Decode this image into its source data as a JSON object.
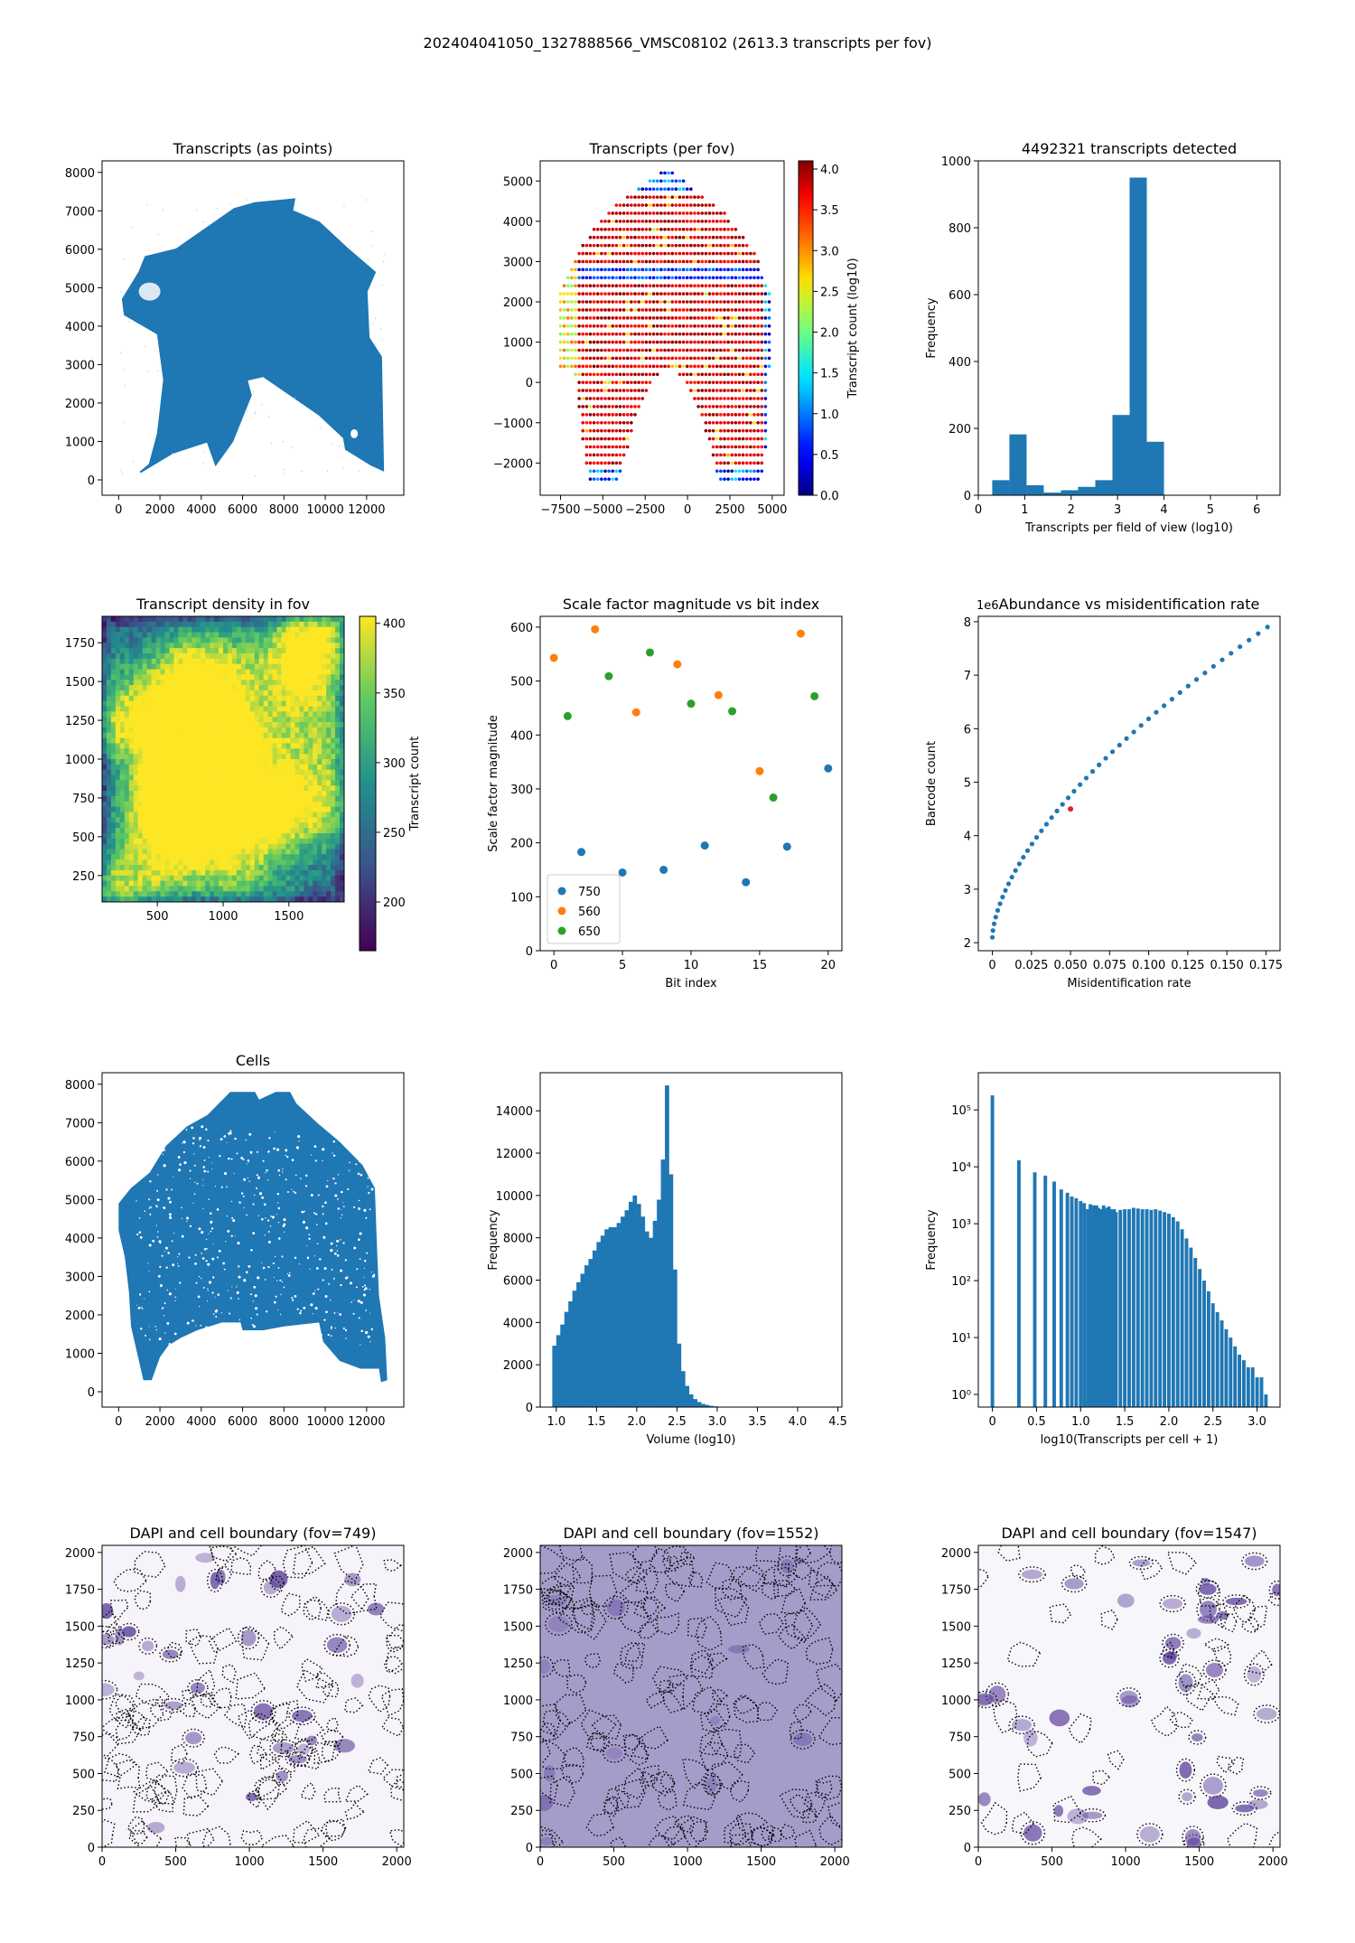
{
  "figure": {
    "suptitle": "202404041050_1327888566_VMSC08102 (2613.3 transcripts per fov)"
  },
  "colors": {
    "blue": "#1f77b4",
    "orange": "#ff7f0e",
    "green": "#2ca02c",
    "red": "#d62728",
    "dapi": "#5a3f9a"
  },
  "chart_data": [
    {
      "id": "transcripts-points",
      "type": "scatter",
      "title": "Transcripts (as points)",
      "xlabel": "",
      "ylabel": "",
      "xlim": [
        -800,
        13800
      ],
      "ylim": [
        -400,
        8300
      ],
      "xticks": [
        0,
        2000,
        4000,
        6000,
        8000,
        10000,
        12000
      ],
      "yticks": [
        0,
        1000,
        2000,
        3000,
        4000,
        5000,
        6000,
        7000,
        8000
      ],
      "outline": [
        [
          1050,
          200
        ],
        [
          1500,
          400
        ],
        [
          1900,
          1200
        ],
        [
          2200,
          2600
        ],
        [
          1900,
          3800
        ],
        [
          300,
          4300
        ],
        [
          200,
          4700
        ],
        [
          1000,
          5400
        ],
        [
          1300,
          5800
        ],
        [
          2800,
          6000
        ],
        [
          4400,
          6600
        ],
        [
          5600,
          7050
        ],
        [
          6600,
          7200
        ],
        [
          8500,
          7300
        ],
        [
          8400,
          7000
        ],
        [
          9700,
          6700
        ],
        [
          11100,
          6000
        ],
        [
          12400,
          5400
        ],
        [
          12000,
          4900
        ],
        [
          12100,
          3700
        ],
        [
          12700,
          3200
        ],
        [
          12800,
          250
        ],
        [
          12200,
          400
        ],
        [
          11000,
          800
        ],
        [
          10900,
          1100
        ],
        [
          9700,
          1700
        ],
        [
          7000,
          2700
        ],
        [
          6200,
          2600
        ],
        [
          6400,
          2200
        ],
        [
          5500,
          1000
        ],
        [
          4700,
          400
        ],
        [
          4300,
          1000
        ],
        [
          2600,
          700
        ]
      ],
      "series": [
        {
          "values_described_by": "outline"
        }
      ]
    },
    {
      "id": "transcripts-per-fov",
      "type": "scatter",
      "title": "Transcripts (per fov)",
      "xlabel": "",
      "ylabel": "",
      "xlim": [
        -8700,
        5700
      ],
      "ylim": [
        -2800,
        5500
      ],
      "xticks": [
        -7500,
        -5000,
        -2500,
        0,
        2500,
        5000
      ],
      "yticks": [
        -2000,
        -1000,
        0,
        1000,
        2000,
        3000,
        4000,
        5000
      ],
      "colorbar": {
        "label": "Transcript count (log10)",
        "min": 0,
        "max": 4.1,
        "ticks": [
          0.0,
          0.5,
          1.0,
          1.5,
          2.0,
          2.5,
          3.0,
          3.5,
          4.0
        ]
      },
      "grid_spacing": 200
    },
    {
      "id": "transcripts-hist",
      "type": "bar",
      "title": "4492321 transcripts detected",
      "xlabel": "Transcripts per field of view (log10)",
      "ylabel": "Frequency",
      "xlim": [
        0,
        6.5
      ],
      "ylim": [
        0,
        1000
      ],
      "xticks": [
        0,
        1,
        2,
        3,
        4,
        5,
        6
      ],
      "yticks": [
        0,
        200,
        400,
        600,
        800,
        1000
      ],
      "bin_edges": [
        0.3,
        0.67,
        1.04,
        1.41,
        1.78,
        2.15,
        2.52,
        2.89,
        3.26,
        3.63,
        4.0
      ],
      "counts": [
        45,
        182,
        30,
        8,
        15,
        25,
        45,
        240,
        950,
        160
      ]
    },
    {
      "id": "density-fov",
      "type": "heatmap",
      "title": "Transcript density in fov",
      "xlabel": "",
      "ylabel": "",
      "xlim": [
        80,
        1920
      ],
      "ylim": [
        80,
        1920
      ],
      "xticks": [
        500,
        1000,
        1500
      ],
      "yticks": [
        250,
        500,
        750,
        1000,
        1250,
        1500,
        1750
      ],
      "colorbar": {
        "label": "Transcript count",
        "min": 165,
        "max": 405,
        "ticks": [
          200,
          250,
          300,
          350,
          400
        ]
      }
    },
    {
      "id": "scale-factor",
      "type": "scatter",
      "title": "Scale factor magnitude vs bit index",
      "xlabel": "Bit index",
      "ylabel": "Scale factor magnitude",
      "xlim": [
        -1,
        21
      ],
      "ylim": [
        0,
        620
      ],
      "xticks": [
        0,
        5,
        10,
        15,
        20
      ],
      "yticks": [
        0,
        100,
        200,
        300,
        400,
        500,
        600
      ],
      "legend": "lower-left",
      "series": [
        {
          "name": "750",
          "x": [
            2,
            5,
            8,
            11,
            14,
            17,
            20
          ],
          "y": [
            183,
            145,
            150,
            195,
            127,
            193,
            338
          ]
        },
        {
          "name": "560",
          "x": [
            0,
            3,
            6,
            9,
            12,
            15,
            18
          ],
          "y": [
            543,
            596,
            442,
            531,
            474,
            333,
            588
          ]
        },
        {
          "name": "650",
          "x": [
            1,
            4,
            7,
            10,
            13,
            16,
            19
          ],
          "y": [
            435,
            509,
            553,
            458,
            444,
            284,
            472
          ]
        }
      ]
    },
    {
      "id": "abundance-misid",
      "type": "scatter",
      "title": "Abundance vs misidentification rate",
      "xlabel": "Misidentification rate",
      "ylabel": "Barcode count",
      "yoffset_label": "1e6",
      "xlim": [
        -0.009,
        0.184
      ],
      "ylim": [
        1.85,
        8.1
      ],
      "xticks": [
        0.0,
        0.025,
        0.05,
        0.075,
        0.1,
        0.125,
        0.15,
        0.175
      ],
      "yticks": [
        2,
        3,
        4,
        5,
        6,
        7,
        8
      ],
      "curve_points": 48,
      "highlight": {
        "x": 0.05,
        "y": 4.5
      }
    },
    {
      "id": "cells",
      "type": "scatter",
      "title": "Cells",
      "xlabel": "",
      "ylabel": "",
      "xlim": [
        -800,
        13800
      ],
      "ylim": [
        -400,
        8300
      ],
      "xticks": [
        0,
        2000,
        4000,
        6000,
        8000,
        10000,
        12000
      ],
      "yticks": [
        0,
        1000,
        2000,
        3000,
        4000,
        5000,
        6000,
        7000,
        8000
      ],
      "outline": [
        [
          1200,
          300
        ],
        [
          1600,
          300
        ],
        [
          2000,
          900
        ],
        [
          2400,
          1200
        ],
        [
          3000,
          1400
        ],
        [
          3800,
          1600
        ],
        [
          5000,
          1800
        ],
        [
          5900,
          1800
        ],
        [
          6000,
          1600
        ],
        [
          7000,
          1600
        ],
        [
          8000,
          1700
        ],
        [
          9700,
          1800
        ],
        [
          9900,
          1300
        ],
        [
          10700,
          800
        ],
        [
          11700,
          600
        ],
        [
          12600,
          600
        ],
        [
          12700,
          250
        ],
        [
          13000,
          300
        ],
        [
          12900,
          1400
        ],
        [
          12600,
          2500
        ],
        [
          12500,
          3800
        ],
        [
          12400,
          5300
        ],
        [
          11800,
          5900
        ],
        [
          10700,
          6500
        ],
        [
          9600,
          7000
        ],
        [
          8600,
          7500
        ],
        [
          8300,
          7800
        ],
        [
          7600,
          7800
        ],
        [
          6800,
          7600
        ],
        [
          6600,
          7800
        ],
        [
          5400,
          7800
        ],
        [
          4300,
          7200
        ],
        [
          3300,
          6900
        ],
        [
          2300,
          6400
        ],
        [
          1500,
          5700
        ],
        [
          600,
          5300
        ],
        [
          0,
          4900
        ],
        [
          0,
          4200
        ],
        [
          300,
          3500
        ],
        [
          500,
          2600
        ],
        [
          600,
          1700
        ],
        [
          900,
          1000
        ]
      ],
      "series": [
        {
          "values_described_by": "outline"
        }
      ]
    },
    {
      "id": "volume-hist",
      "type": "bar",
      "title": "",
      "xlabel": "Volume (log10)",
      "ylabel": "Frequency",
      "xlim": [
        0.8,
        4.55
      ],
      "ylim": [
        0,
        15800
      ],
      "xticks": [
        1.0,
        1.5,
        2.0,
        2.5,
        3.0,
        3.5,
        4.0,
        4.5
      ],
      "yticks": [
        0,
        2000,
        4000,
        6000,
        8000,
        10000,
        12000,
        14000
      ],
      "bin_start": 0.95,
      "bin_width": 0.05,
      "counts": [
        2900,
        3400,
        3900,
        4500,
        5000,
        5500,
        5900,
        6300,
        6700,
        7000,
        7400,
        7800,
        8100,
        8400,
        8500,
        8500,
        8700,
        9000,
        9300,
        9700,
        10000,
        9600,
        9000,
        8300,
        8000,
        8800,
        9800,
        11700,
        15200,
        11000,
        6500,
        3000,
        1700,
        1000,
        600,
        380,
        240,
        150,
        100,
        60,
        35,
        20,
        12,
        8,
        5,
        3,
        2,
        1
      ]
    },
    {
      "id": "transcripts-per-cell",
      "type": "bar",
      "title": "",
      "xlabel": "log10(Transcripts per cell + 1)",
      "ylabel": "Frequency",
      "yscale": "log",
      "xlim": [
        -0.16,
        3.26
      ],
      "ylim": [
        0.6,
        450000
      ],
      "xticks": [
        0.0,
        0.5,
        1.0,
        1.5,
        2.0,
        2.5,
        3.0
      ],
      "yticks": [
        1,
        10,
        100,
        1000,
        10000,
        100000
      ],
      "ytick_labels": [
        "10⁰",
        "10¹",
        "10²",
        "10³",
        "10⁴",
        "10⁵"
      ],
      "bars": [
        [
          0.0,
          180000
        ],
        [
          0.3,
          13000
        ],
        [
          0.48,
          8000
        ],
        [
          0.6,
          7000
        ],
        [
          0.7,
          5500
        ],
        [
          0.78,
          4000
        ],
        [
          0.85,
          3500
        ],
        [
          0.9,
          3000
        ],
        [
          0.95,
          2800
        ],
        [
          1.0,
          2500
        ],
        [
          1.04,
          2300
        ],
        [
          1.08,
          1800
        ],
        [
          1.11,
          2200
        ],
        [
          1.15,
          2100
        ],
        [
          1.18,
          2100
        ],
        [
          1.2,
          1900
        ],
        [
          1.23,
          1800
        ],
        [
          1.26,
          2100
        ],
        [
          1.28,
          1700
        ],
        [
          1.3,
          1900
        ],
        [
          1.32,
          2000
        ],
        [
          1.34,
          1800
        ],
        [
          1.36,
          1700
        ],
        [
          1.38,
          1800
        ],
        [
          1.4,
          1600
        ],
        [
          1.45,
          1750
        ],
        [
          1.5,
          1800
        ],
        [
          1.55,
          1800
        ],
        [
          1.6,
          1900
        ],
        [
          1.65,
          1850
        ],
        [
          1.7,
          1800
        ],
        [
          1.75,
          1800
        ],
        [
          1.8,
          1750
        ],
        [
          1.85,
          1800
        ],
        [
          1.9,
          1700
        ],
        [
          1.95,
          1600
        ],
        [
          2.0,
          1500
        ],
        [
          2.05,
          1300
        ],
        [
          2.1,
          1100
        ],
        [
          2.15,
          800
        ],
        [
          2.2,
          550
        ],
        [
          2.25,
          380
        ],
        [
          2.3,
          250
        ],
        [
          2.35,
          160
        ],
        [
          2.4,
          100
        ],
        [
          2.45,
          65
        ],
        [
          2.5,
          40
        ],
        [
          2.55,
          28
        ],
        [
          2.6,
          20
        ],
        [
          2.65,
          14
        ],
        [
          2.7,
          10
        ],
        [
          2.75,
          7
        ],
        [
          2.8,
          5
        ],
        [
          2.85,
          4
        ],
        [
          2.9,
          3
        ],
        [
          2.95,
          3
        ],
        [
          3.0,
          2
        ],
        [
          3.05,
          2
        ],
        [
          3.1,
          1
        ]
      ]
    },
    {
      "id": "dapi-749",
      "type": "heatmap",
      "title": "DAPI and cell boundary (fov=749)",
      "xlabel": "",
      "ylabel": "",
      "xlim": [
        0,
        2048
      ],
      "ylim": [
        0,
        2048
      ],
      "xticks": [
        0,
        500,
        1000,
        1500,
        2000
      ],
      "yticks": [
        0,
        250,
        500,
        750,
        1000,
        1250,
        1500,
        1750,
        2000
      ],
      "background": "#f6f4fa",
      "nuclei": 34,
      "boundaries": 120,
      "seed": 749
    },
    {
      "id": "dapi-1552",
      "type": "heatmap",
      "title": "DAPI and cell boundary (fov=1552)",
      "xlabel": "",
      "ylabel": "",
      "xlim": [
        0,
        2048
      ],
      "ylim": [
        0,
        2048
      ],
      "xticks": [
        0,
        500,
        1000,
        1500,
        2000
      ],
      "yticks": [
        0,
        250,
        500,
        750,
        1000,
        1250,
        1500,
        1750,
        2000
      ],
      "background": "#a59dc9",
      "nuclei": 14,
      "boundaries": 150,
      "seed": 1552
    },
    {
      "id": "dapi-1547",
      "type": "heatmap",
      "title": "DAPI and cell boundary (fov=1547)",
      "xlabel": "",
      "ylabel": "",
      "xlim": [
        0,
        2048
      ],
      "ylim": [
        0,
        2048
      ],
      "xticks": [
        0,
        500,
        1000,
        1500,
        2000
      ],
      "yticks": [
        0,
        250,
        500,
        750,
        1000,
        1250,
        1500,
        1750,
        2000
      ],
      "background": "#f7f6fb",
      "nuclei": 46,
      "boundaries": 40,
      "seed": 1547
    }
  ]
}
